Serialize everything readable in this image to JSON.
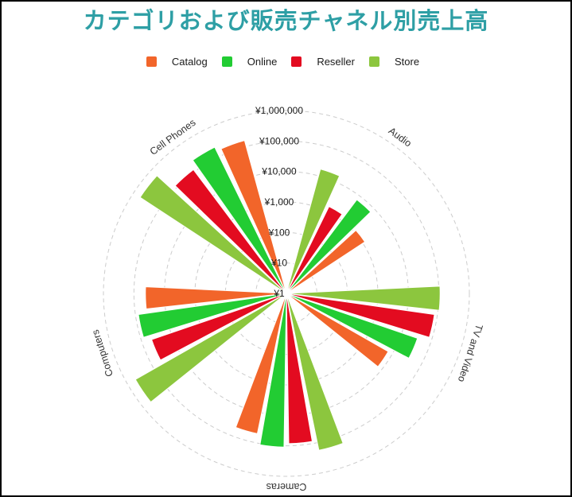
{
  "title": {
    "text": "カテゴリおよび販売チャネル別売上高",
    "color": "#2E9FA5"
  },
  "legend": {
    "position": "top",
    "items": [
      {
        "label": "Catalog",
        "color": "#F2652A"
      },
      {
        "label": "Online",
        "color": "#22CC33"
      },
      {
        "label": "Reseller",
        "color": "#E30B20"
      },
      {
        "label": "Store",
        "color": "#8CC63E"
      }
    ]
  },
  "chart_data": {
    "type": "polar-column",
    "title": "カテゴリおよび販売チャネル別売上高",
    "categories": [
      "Audio",
      "TV and Video",
      "Cameras",
      "Computers",
      "Cell Phones"
    ],
    "series": [
      {
        "name": "Catalog",
        "color": "#F2652A",
        "values": [
          1200,
          7000,
          50000,
          42000,
          160000
        ]
      },
      {
        "name": "Online",
        "color": "#22CC33",
        "values": [
          7000,
          35000,
          110000,
          80000,
          220000
        ]
      },
      {
        "name": "Reseller",
        "color": "#E30B20",
        "values": [
          1500,
          80000,
          85000,
          47000,
          120000
        ]
      },
      {
        "name": "Store",
        "color": "#8CC63E",
        "values": [
          17000,
          110000,
          180000,
          500000,
          550000
        ]
      }
    ],
    "radial_axis": {
      "scale": "log",
      "currency": "¥",
      "min": 1,
      "max": 1000000,
      "tick_labels": [
        "¥1",
        "¥10",
        "¥100",
        "¥1,000",
        "¥10,000",
        "¥100,000",
        "¥1,000,000"
      ]
    },
    "grid": {
      "shown": true,
      "style": "dashed",
      "color": "#CCCCCC"
    },
    "legend_position": "top",
    "first_category_angle_deg": 36,
    "direction": "clockwise"
  }
}
